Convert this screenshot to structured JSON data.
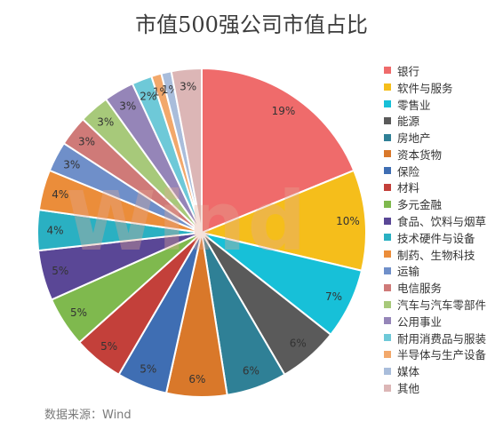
{
  "chart_data": {
    "type": "pie",
    "title": "市值500强公司市值占比",
    "source": "数据来源：Wind",
    "watermark": "Wind",
    "slices": [
      {
        "name": "银行",
        "value": 19,
        "label": "19%",
        "color": "#ef6b6b"
      },
      {
        "name": "软件与服务",
        "value": 10,
        "label": "10%",
        "color": "#f5be1b"
      },
      {
        "name": "零售业",
        "value": 7,
        "label": "7%",
        "color": "#17c0d8"
      },
      {
        "name": "能源",
        "value": 6,
        "label": "6%",
        "color": "#5a5a5a"
      },
      {
        "name": "房地产",
        "value": 6,
        "label": "6%",
        "color": "#2f8096"
      },
      {
        "name": "资本货物",
        "value": 6,
        "label": "6%",
        "color": "#d9782a"
      },
      {
        "name": "保险",
        "value": 5,
        "label": "5%",
        "color": "#3f6eb3"
      },
      {
        "name": "材料",
        "value": 5,
        "label": "5%",
        "color": "#c3403a"
      },
      {
        "name": "多元金融",
        "value": 5,
        "label": "5%",
        "color": "#7fb94e"
      },
      {
        "name": "食品、饮料与烟草",
        "value": 5,
        "label": "5%",
        "color": "#5a4796"
      },
      {
        "name": "技术硬件与设备",
        "value": 4,
        "label": "4%",
        "color": "#2ab0c2"
      },
      {
        "name": "制药、生物科技",
        "value": 4,
        "label": "4%",
        "color": "#eb8d3a"
      },
      {
        "name": "运输",
        "value": 3,
        "label": "3%",
        "color": "#6f8fc9"
      },
      {
        "name": "电信服务",
        "value": 3,
        "label": "3%",
        "color": "#cf7a78"
      },
      {
        "name": "汽车与汽车零部件",
        "value": 3,
        "label": "3%",
        "color": "#a7c97a"
      },
      {
        "name": "公用事业",
        "value": 3,
        "label": "3%",
        "color": "#9585b8"
      },
      {
        "name": "耐用消费品与服装",
        "value": 2,
        "label": "2%",
        "color": "#6ec9d8"
      },
      {
        "name": "半导体与生产设备",
        "value": 1,
        "label": "1%",
        "color": "#f2a86b"
      },
      {
        "name": "媒体",
        "value": 1,
        "label": "1%",
        "color": "#a9bddb"
      },
      {
        "name": "其他",
        "value": 3,
        "label": "3%",
        "color": "#dcb6b6"
      }
    ]
  }
}
